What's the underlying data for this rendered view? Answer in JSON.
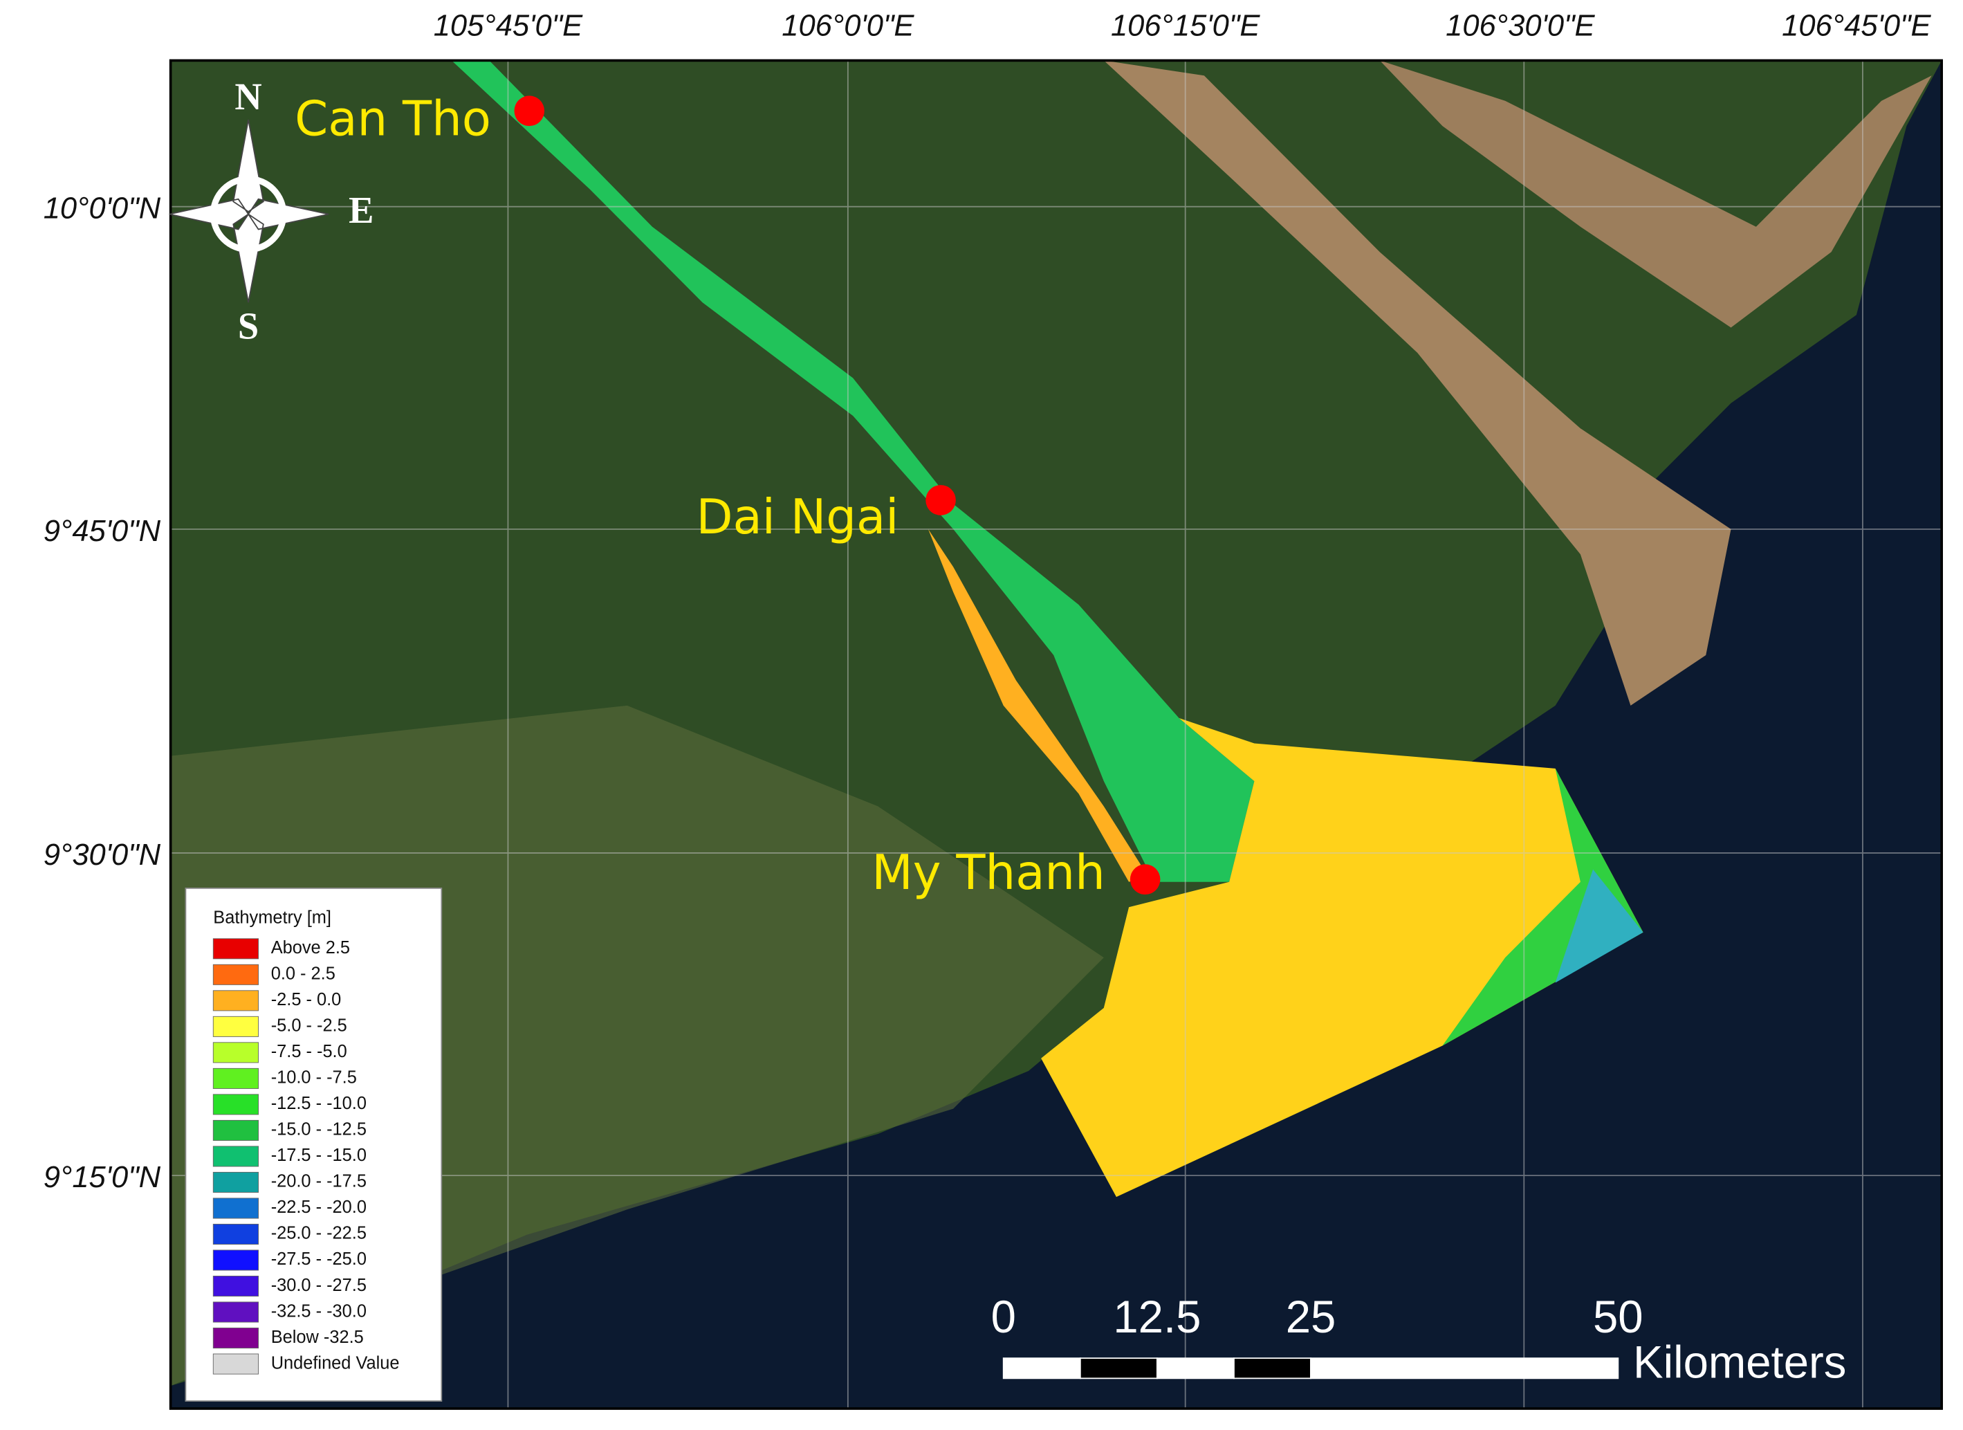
{
  "map": {
    "longitude_labels": [
      "105°45'0\"E",
      "106°0'0\"E",
      "106°15'0\"E",
      "106°30'0\"E",
      "106°45'0\"E"
    ],
    "latitude_labels": [
      "10°0'0\"N",
      "9°45'0\"N",
      "9°30'0\"N",
      "9°15'0\"N"
    ],
    "places": [
      "Can Tho",
      "Dai Ngai",
      "My Thanh"
    ],
    "compass": {
      "north": "N",
      "east": "E",
      "south": "S"
    },
    "legend": {
      "title": "Bathymetry [m]",
      "items": [
        {
          "label": "Above   2.5",
          "color": "#e80000"
        },
        {
          "label": "0.0 -   2.5",
          "color": "#ff6a10"
        },
        {
          "label": "-2.5 -   0.0",
          "color": "#ffb020"
        },
        {
          "label": "-5.0 -  -2.5",
          "color": "#ffff40"
        },
        {
          "label": "-7.5 -  -5.0",
          "color": "#b8ff2a"
        },
        {
          "label": "-10.0 -  -7.5",
          "color": "#60f020"
        },
        {
          "label": "-12.5 - -10.0",
          "color": "#28e028"
        },
        {
          "label": "-15.0 - -12.5",
          "color": "#20c040"
        },
        {
          "label": "-17.5 - -15.0",
          "color": "#10c070"
        },
        {
          "label": "-20.0 - -17.5",
          "color": "#10a0a0"
        },
        {
          "label": "-22.5 - -20.0",
          "color": "#1070d0"
        },
        {
          "label": "-25.0 - -22.5",
          "color": "#1040e0"
        },
        {
          "label": "-27.5 - -25.0",
          "color": "#1010ff"
        },
        {
          "label": "-30.0 - -27.5",
          "color": "#4010e0"
        },
        {
          "label": "-32.5 - -30.0",
          "color": "#6010c0"
        },
        {
          "label": "Below -32.5",
          "color": "#800090"
        },
        {
          "label": "Undefined Value",
          "color": "#d8d8d8"
        }
      ]
    },
    "scale_bar": {
      "ticks": [
        0,
        12.5,
        25,
        50
      ],
      "unit": "Kilometers"
    }
  }
}
